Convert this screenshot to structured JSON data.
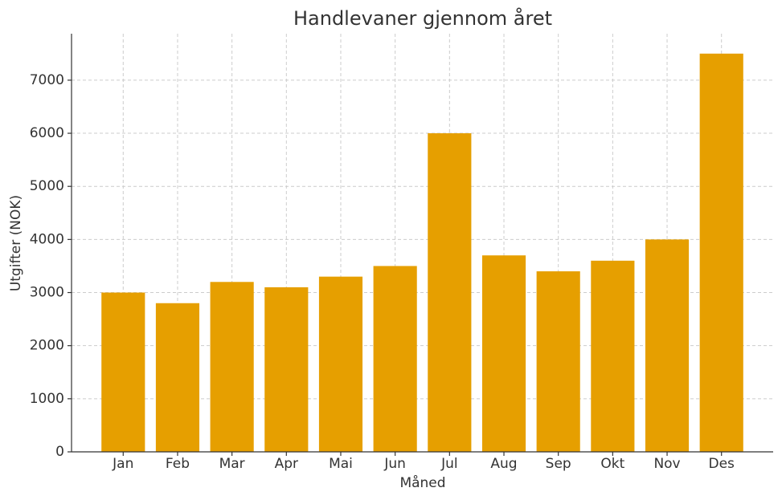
{
  "chart_data": {
    "type": "bar",
    "title": "Handlevaner gjennom året",
    "x_label": "Måned",
    "y_label": "Utgifter (NOK)",
    "categories": [
      "Jan",
      "Feb",
      "Mar",
      "Apr",
      "Mai",
      "Jun",
      "Jul",
      "Aug",
      "Sep",
      "Okt",
      "Nov",
      "Des"
    ],
    "values": [
      3000,
      2800,
      3200,
      3100,
      3300,
      3500,
      6000,
      3700,
      3400,
      3600,
      4000,
      7500
    ],
    "color": "#e69f00",
    "ylim": [
      0,
      7875
    ],
    "yticks": [
      0,
      1000,
      2000,
      3000,
      4000,
      5000,
      6000,
      7000
    ],
    "grid": true
  }
}
